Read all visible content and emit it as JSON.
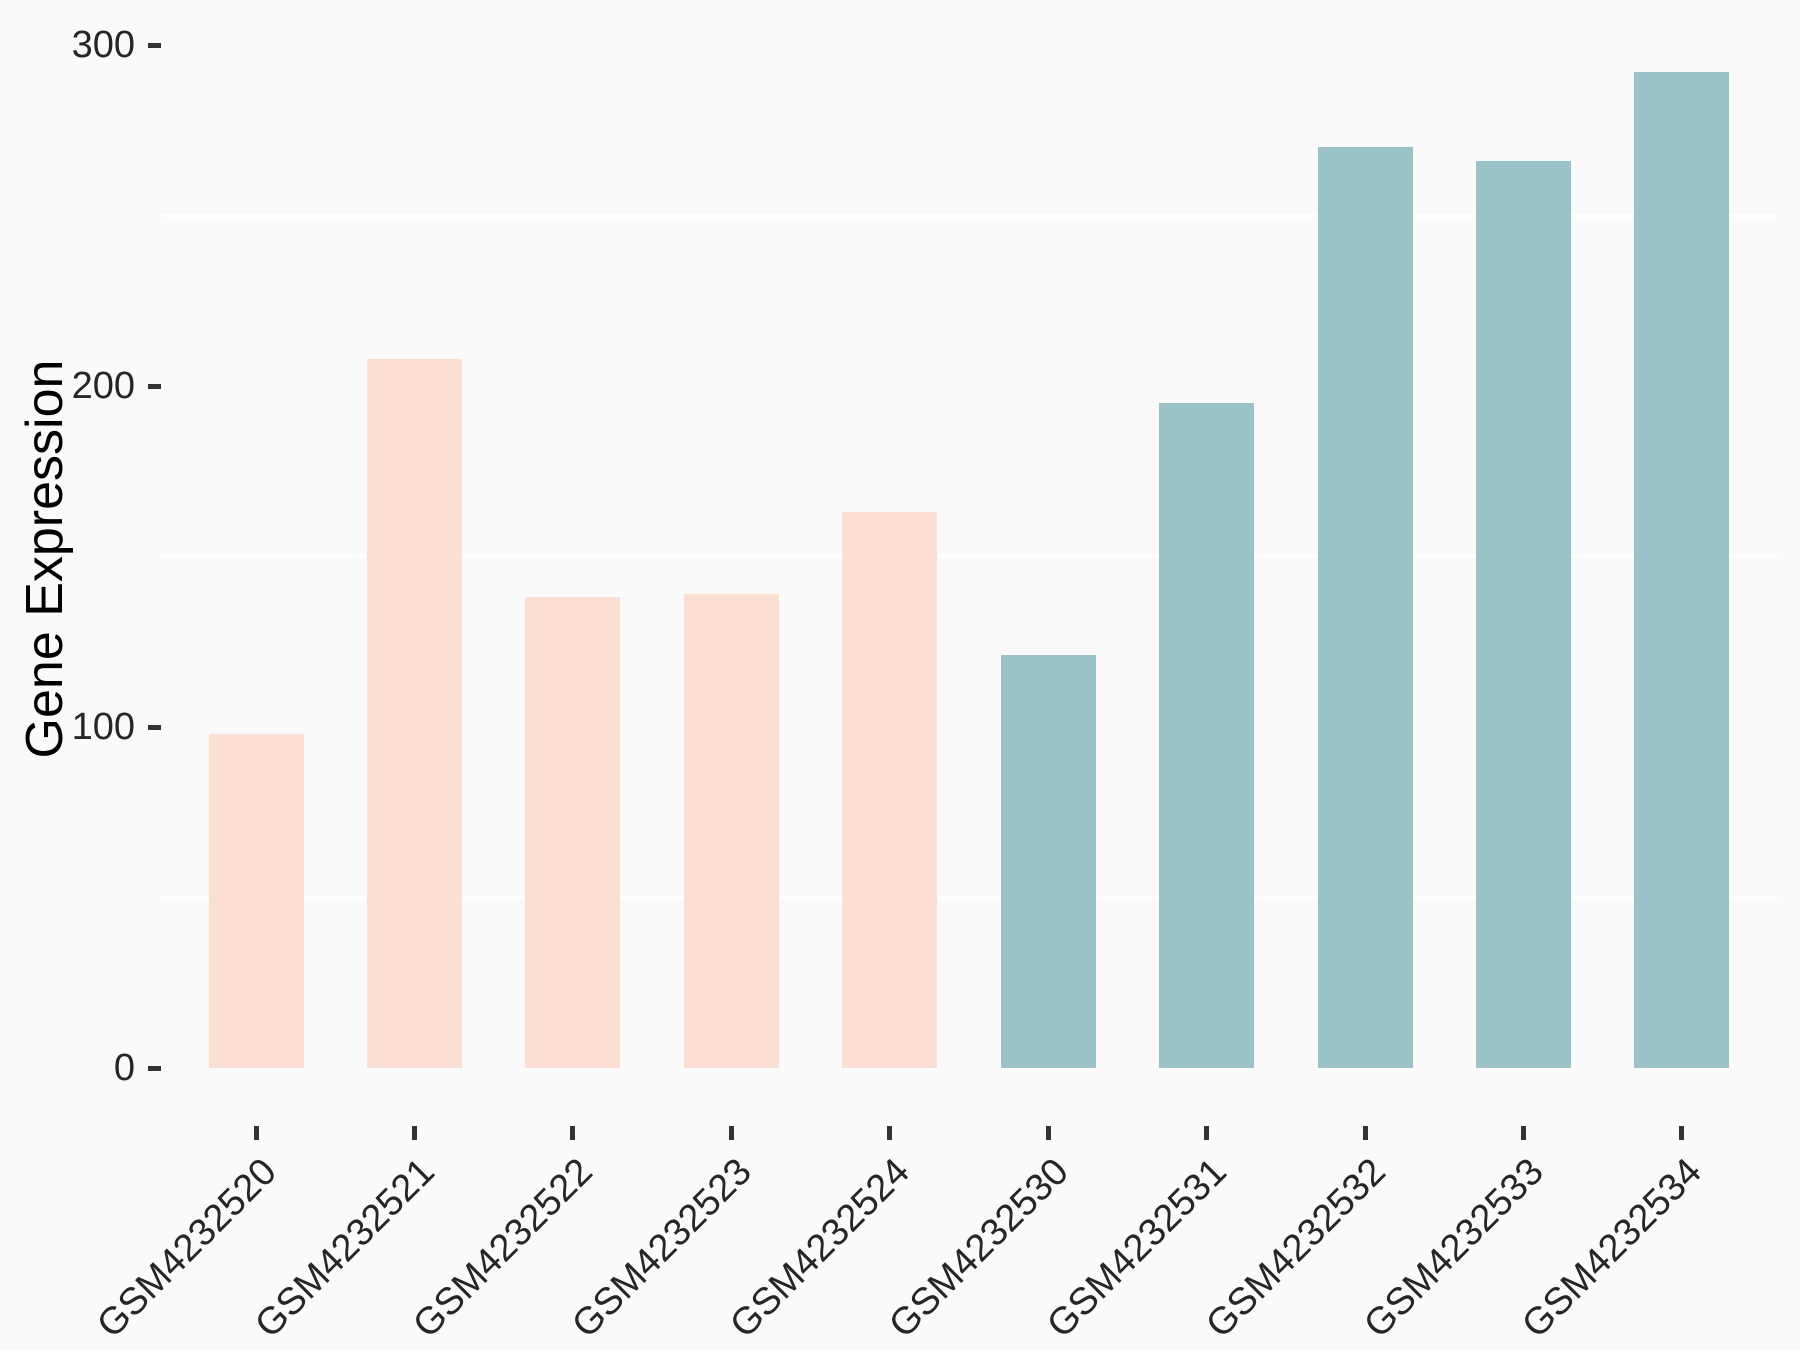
{
  "style": {
    "background_color": "#fafafa",
    "gridline_color": "#ffffff",
    "tick_color": "#333333",
    "tick_label_color": "#262626",
    "axis_title_color": "#000000",
    "group1_color": "#fcdfd3",
    "group2_color": "#9bc3c7"
  },
  "chart_data": {
    "type": "bar",
    "title": "",
    "xlabel": "",
    "ylabel": "Gene Expression",
    "categories": [
      "GSM4232520",
      "GSM4232521",
      "GSM4232522",
      "GSM4232523",
      "GSM4232524",
      "GSM4232530",
      "GSM4232531",
      "GSM4232532",
      "GSM4232533",
      "GSM4232534"
    ],
    "values": [
      98,
      208,
      138,
      139,
      163,
      121,
      195,
      270,
      266,
      292
    ],
    "bar_colors": [
      "#fcdfd3",
      "#fcdfd3",
      "#fcdfd3",
      "#fcdfd3",
      "#fcdfd3",
      "#9bc3c7",
      "#9bc3c7",
      "#9bc3c7",
      "#9bc3c7",
      "#9bc3c7"
    ],
    "yticks": [
      0,
      100,
      200,
      300
    ],
    "ytick_labels": [
      "0",
      "100",
      "200",
      "300"
    ],
    "minor_gridlines": [
      50,
      150,
      250
    ],
    "ylim": [
      0,
      313
    ],
    "grid": "minor-horizontal-only",
    "legend": "none",
    "x_label_rotation_deg": 45
  }
}
